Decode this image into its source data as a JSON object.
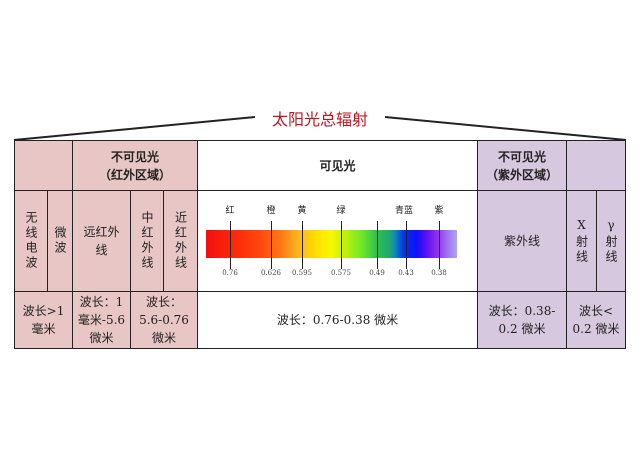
{
  "title": "太阳光总辐射",
  "header": {
    "infrared": [
      "不可见光",
      "（红外区域）"
    ],
    "visible": "可见光",
    "ultraviolet": [
      "不可见光",
      "（紫外区域）"
    ]
  },
  "bands": {
    "radio": "无线电波",
    "microwave": "微波",
    "far_ir": "远红外线",
    "mid_ir": "中红外线",
    "near_ir": "近红外线",
    "uv": "紫外线",
    "xray": "X射线",
    "gamma": "γ射线"
  },
  "wavelengths": {
    "radio_micro": [
      "波长>1",
      "毫米"
    ],
    "far_ir": [
      "波长：1",
      "毫米-5.6",
      "微米"
    ],
    "mid_near_ir": [
      "波长：",
      "5.6-0.76",
      "微米"
    ],
    "visible": "波长：0.76-0.38 微米",
    "uv": [
      "波长：0.38-",
      "0.2 微米"
    ],
    "xray_gamma": [
      "波长<",
      "0.2 微米"
    ]
  },
  "spectrum": {
    "colors": [
      "红",
      "橙",
      "黄",
      "绿",
      "",
      "青蓝",
      "紫"
    ],
    "values": [
      "0.76",
      "0.626",
      "0.595",
      "0.575",
      "0.49",
      "0.43",
      "0.38"
    ]
  },
  "palette": {
    "title": "#c0141c",
    "infrared": "#e8c6c6",
    "ultraviolet": "#d6c8de"
  }
}
